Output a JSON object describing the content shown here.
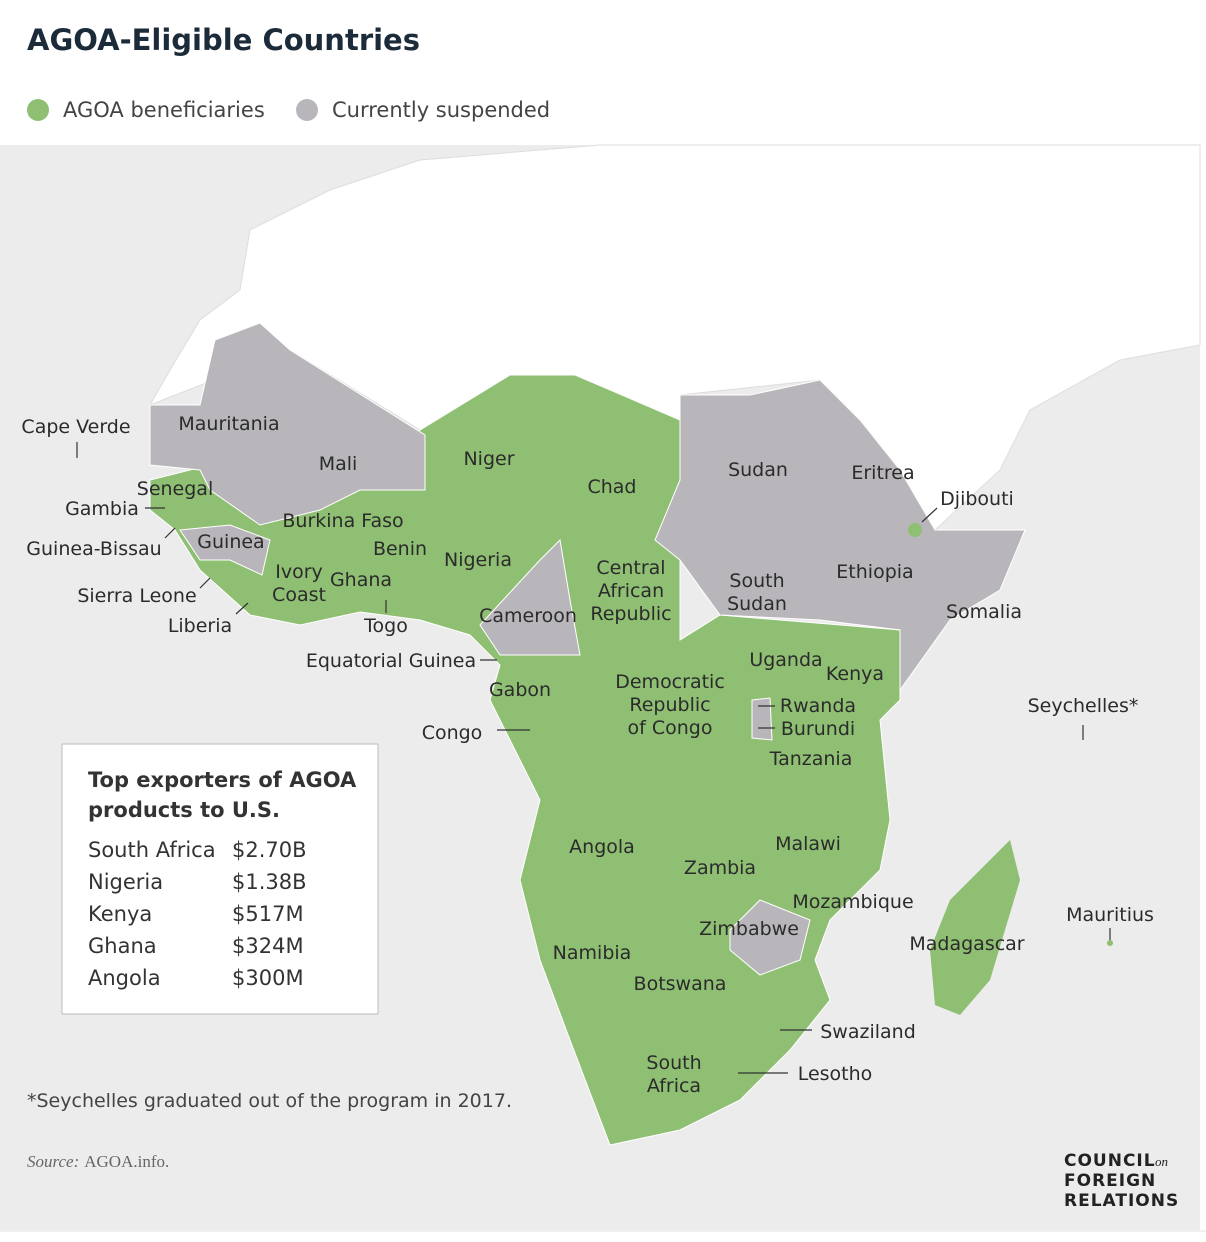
{
  "title": "AGOA-Eligible Countries",
  "legend": [
    {
      "label": "AGOA beneficiaries",
      "color": "#8fbf73"
    },
    {
      "label": "Currently suspended",
      "color": "#b8b6ba"
    }
  ],
  "map": {
    "labels": [
      [
        "Cape Verde"
      ],
      [
        "Mauritania"
      ],
      [
        "Mali"
      ],
      [
        "Niger"
      ],
      [
        "Chad"
      ],
      [
        "Sudan"
      ],
      [
        "Eritrea"
      ],
      [
        "Djibouti"
      ],
      [
        "Senegal"
      ],
      [
        "Gambia"
      ],
      [
        "Burkina Faso"
      ],
      [
        "Guinea-Bissau"
      ],
      [
        "Guinea"
      ],
      [
        "Benin"
      ],
      [
        "Nigeria"
      ],
      [
        "Central",
        "African",
        "Republic"
      ],
      [
        "Ethiopia"
      ],
      [
        "Sierra Leone"
      ],
      [
        "Ivory",
        "Coast"
      ],
      [
        "Ghana"
      ],
      [
        "South",
        "Sudan"
      ],
      [
        "Somalia"
      ],
      [
        "Cameroon"
      ],
      [
        "Liberia"
      ],
      [
        "Togo"
      ],
      [
        "Equatorial Guinea"
      ],
      [
        "Uganda"
      ],
      [
        "Kenya"
      ],
      [
        "Gabon"
      ],
      [
        "Democratic",
        "Republic",
        "of Congo"
      ],
      [
        "Rwanda"
      ],
      [
        "Seychelles*"
      ],
      [
        "Burundi"
      ],
      [
        "Congo"
      ],
      [
        "Tanzania"
      ],
      [
        "Malawi"
      ],
      [
        "Angola"
      ],
      [
        "Zambia"
      ],
      [
        "Mozambique"
      ],
      [
        "Mauritius"
      ],
      [
        "Zimbabwe"
      ],
      [
        "Madagascar"
      ],
      [
        "Namibia"
      ],
      [
        "Botswana"
      ],
      [
        "Swaziland"
      ],
      [
        "South",
        "Africa"
      ],
      [
        "Lesotho"
      ]
    ]
  },
  "table": {
    "title": [
      "Top exporters of AGOA",
      "products to U.S."
    ],
    "rows": [
      [
        "South Africa",
        "$2.70B"
      ],
      [
        "Nigeria",
        "$1.38B"
      ],
      [
        "Kenya",
        "$517M"
      ],
      [
        "Ghana",
        "$324M"
      ],
      [
        "Angola",
        "$300M"
      ]
    ]
  },
  "footnote": "*Seychelles graduated out of the program in 2017.",
  "source": {
    "prefix": "Source:",
    "text": "AGOA.info."
  },
  "logo": {
    "lines": [
      "COUNCIL",
      "FOREIGN",
      "RELATIONS"
    ],
    "on": "on"
  }
}
